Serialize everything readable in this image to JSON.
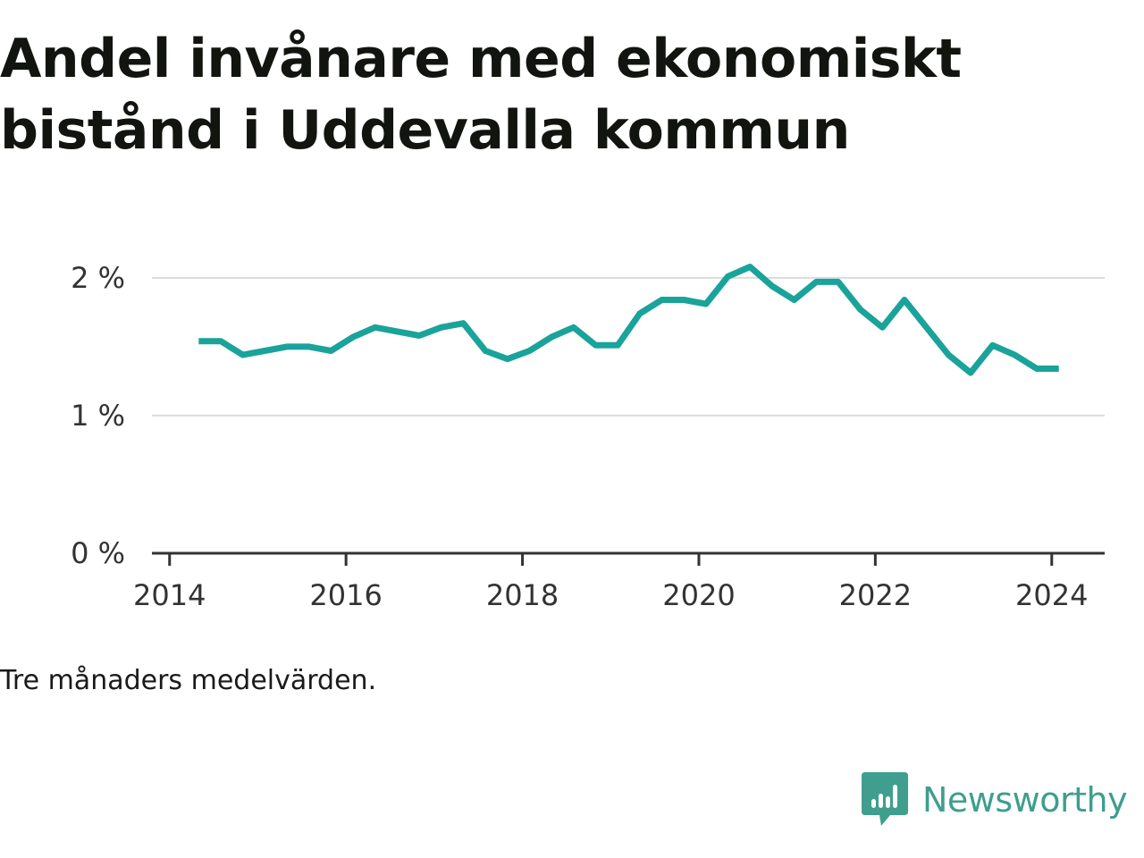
{
  "title": "Andel invånare med ekonomiskt bistånd i Uddevalla kommun",
  "note": "Tre månaders medelvärden.",
  "brand": {
    "name": "Newsworthy",
    "icon": "bar-chart-speech-bubble-icon",
    "color": "#3f9e8e"
  },
  "chart_data": {
    "type": "line",
    "title": "Andel invånare med ekonomiskt bistånd i Uddevalla kommun",
    "xlabel": "",
    "ylabel": "",
    "xlim": [
      2013.8,
      2024.6
    ],
    "ylim": [
      0,
      2.2
    ],
    "x_ticks": [
      2014,
      2016,
      2018,
      2020,
      2022,
      2024
    ],
    "x_tick_labels": [
      "2014",
      "2016",
      "2018",
      "2020",
      "2022",
      "2024"
    ],
    "y_ticks": [
      0,
      1,
      2
    ],
    "y_tick_labels": [
      "0 %",
      "1 %",
      "2 %"
    ],
    "grid": true,
    "legend": "none",
    "series": [
      {
        "color": "#1aa39a",
        "x": [
          2014.33,
          2014.58,
          2014.83,
          2015.08,
          2015.33,
          2015.58,
          2015.83,
          2016.08,
          2016.33,
          2016.58,
          2016.83,
          2017.08,
          2017.33,
          2017.58,
          2017.83,
          2018.08,
          2018.33,
          2018.58,
          2018.83,
          2019.08,
          2019.33,
          2019.58,
          2019.83,
          2020.08,
          2020.33,
          2020.58,
          2020.83,
          2021.08,
          2021.33,
          2021.58,
          2021.83,
          2022.08,
          2022.33,
          2022.58,
          2022.83,
          2023.08,
          2023.33,
          2023.58,
          2023.83,
          2024.08
        ],
        "y": [
          1.54,
          1.54,
          1.44,
          1.47,
          1.5,
          1.5,
          1.47,
          1.57,
          1.64,
          1.61,
          1.58,
          1.64,
          1.67,
          1.47,
          1.41,
          1.47,
          1.57,
          1.64,
          1.51,
          1.51,
          1.74,
          1.84,
          1.84,
          1.81,
          2.01,
          2.08,
          1.94,
          1.84,
          1.97,
          1.97,
          1.77,
          1.64,
          1.84,
          1.64,
          1.44,
          1.31,
          1.51,
          1.44,
          1.34,
          1.34
        ]
      }
    ]
  }
}
